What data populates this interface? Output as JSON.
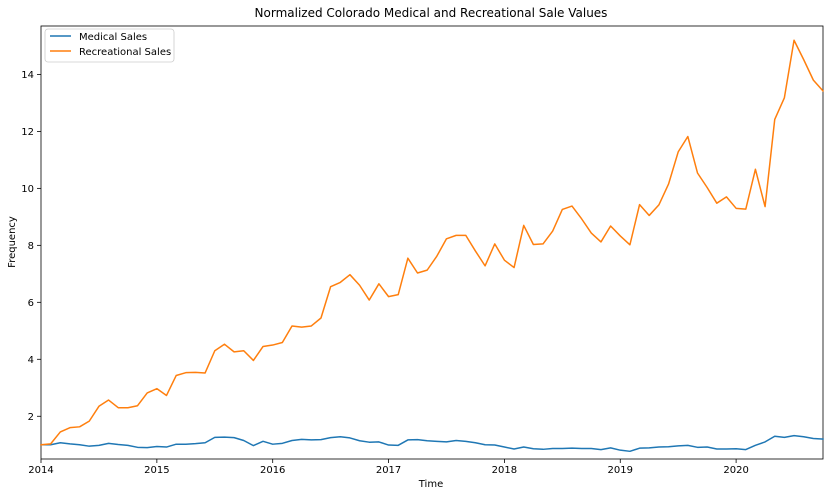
{
  "chart_data": {
    "type": "line",
    "title": "Normalized Colorado Medical and Recreational Sale Values",
    "xlabel": "Time",
    "ylabel": "Frequency",
    "x_ticks": [
      "2014",
      "2015",
      "2016",
      "2017",
      "2018",
      "2019",
      "2020"
    ],
    "y_ticks": [
      "2",
      "4",
      "6",
      "8",
      "10",
      "12",
      "14"
    ],
    "xlim": [
      "2014-01",
      "2020-10"
    ],
    "ylim": [
      0.5,
      15.7
    ],
    "grid": false,
    "legend_position": "top-left",
    "x": [
      "2014-01",
      "2014-02",
      "2014-03",
      "2014-04",
      "2014-05",
      "2014-06",
      "2014-07",
      "2014-08",
      "2014-09",
      "2014-10",
      "2014-11",
      "2014-12",
      "2015-01",
      "2015-02",
      "2015-03",
      "2015-04",
      "2015-05",
      "2015-06",
      "2015-07",
      "2015-08",
      "2015-09",
      "2015-10",
      "2015-11",
      "2015-12",
      "2016-01",
      "2016-02",
      "2016-03",
      "2016-04",
      "2016-05",
      "2016-06",
      "2016-07",
      "2016-08",
      "2016-09",
      "2016-10",
      "2016-11",
      "2016-12",
      "2017-01",
      "2017-02",
      "2017-03",
      "2017-04",
      "2017-05",
      "2017-06",
      "2017-07",
      "2017-08",
      "2017-09",
      "2017-10",
      "2017-11",
      "2017-12",
      "2018-01",
      "2018-02",
      "2018-03",
      "2018-04",
      "2018-05",
      "2018-06",
      "2018-07",
      "2018-08",
      "2018-09",
      "2018-10",
      "2018-11",
      "2018-12",
      "2019-01",
      "2019-02",
      "2019-03",
      "2019-04",
      "2019-05",
      "2019-06",
      "2019-07",
      "2019-08",
      "2019-09",
      "2019-10",
      "2019-11",
      "2019-12",
      "2020-01",
      "2020-02",
      "2020-03",
      "2020-04",
      "2020-05",
      "2020-06",
      "2020-07",
      "2020-08",
      "2020-09",
      "2020-10"
    ],
    "series": [
      {
        "name": "Medical Sales",
        "color": "#1f77b4",
        "values": [
          1.0,
          1.0,
          1.07,
          1.03,
          1.0,
          0.95,
          0.98,
          1.05,
          1.01,
          0.98,
          0.91,
          0.9,
          0.94,
          0.92,
          1.02,
          1.02,
          1.04,
          1.07,
          1.26,
          1.27,
          1.25,
          1.15,
          0.97,
          1.12,
          1.02,
          1.05,
          1.15,
          1.19,
          1.17,
          1.18,
          1.25,
          1.28,
          1.24,
          1.14,
          1.09,
          1.1,
          0.99,
          0.98,
          1.17,
          1.18,
          1.14,
          1.12,
          1.1,
          1.15,
          1.12,
          1.07,
          1.0,
          0.99,
          0.92,
          0.85,
          0.92,
          0.86,
          0.84,
          0.87,
          0.87,
          0.88,
          0.87,
          0.87,
          0.83,
          0.89,
          0.81,
          0.77,
          0.88,
          0.89,
          0.92,
          0.93,
          0.96,
          0.98,
          0.91,
          0.92,
          0.85,
          0.85,
          0.86,
          0.83,
          0.98,
          1.1,
          1.3,
          1.26,
          1.32,
          1.28,
          1.22,
          1.2
        ]
      },
      {
        "name": "Recreational Sales",
        "color": "#ff7f0e",
        "values": [
          1.0,
          1.03,
          1.45,
          1.6,
          1.63,
          1.83,
          2.35,
          2.57,
          2.3,
          2.3,
          2.37,
          2.82,
          2.97,
          2.73,
          3.43,
          3.53,
          3.54,
          3.52,
          4.3,
          4.53,
          4.26,
          4.3,
          3.96,
          4.45,
          4.5,
          4.59,
          5.17,
          5.13,
          5.17,
          5.45,
          6.55,
          6.7,
          6.97,
          6.6,
          6.08,
          6.65,
          6.2,
          6.27,
          7.55,
          7.03,
          7.13,
          7.62,
          8.23,
          8.35,
          8.35,
          7.8,
          7.28,
          8.05,
          7.48,
          7.22,
          8.7,
          8.03,
          8.05,
          8.5,
          9.26,
          9.38,
          8.93,
          8.43,
          8.12,
          8.68,
          8.33,
          8.02,
          9.43,
          9.05,
          9.42,
          10.15,
          11.28,
          11.82,
          10.54,
          10.03,
          9.48,
          9.7,
          9.3,
          9.27,
          10.67,
          9.36,
          12.42,
          13.18,
          15.2,
          14.52,
          13.8,
          13.42
        ]
      }
    ]
  }
}
